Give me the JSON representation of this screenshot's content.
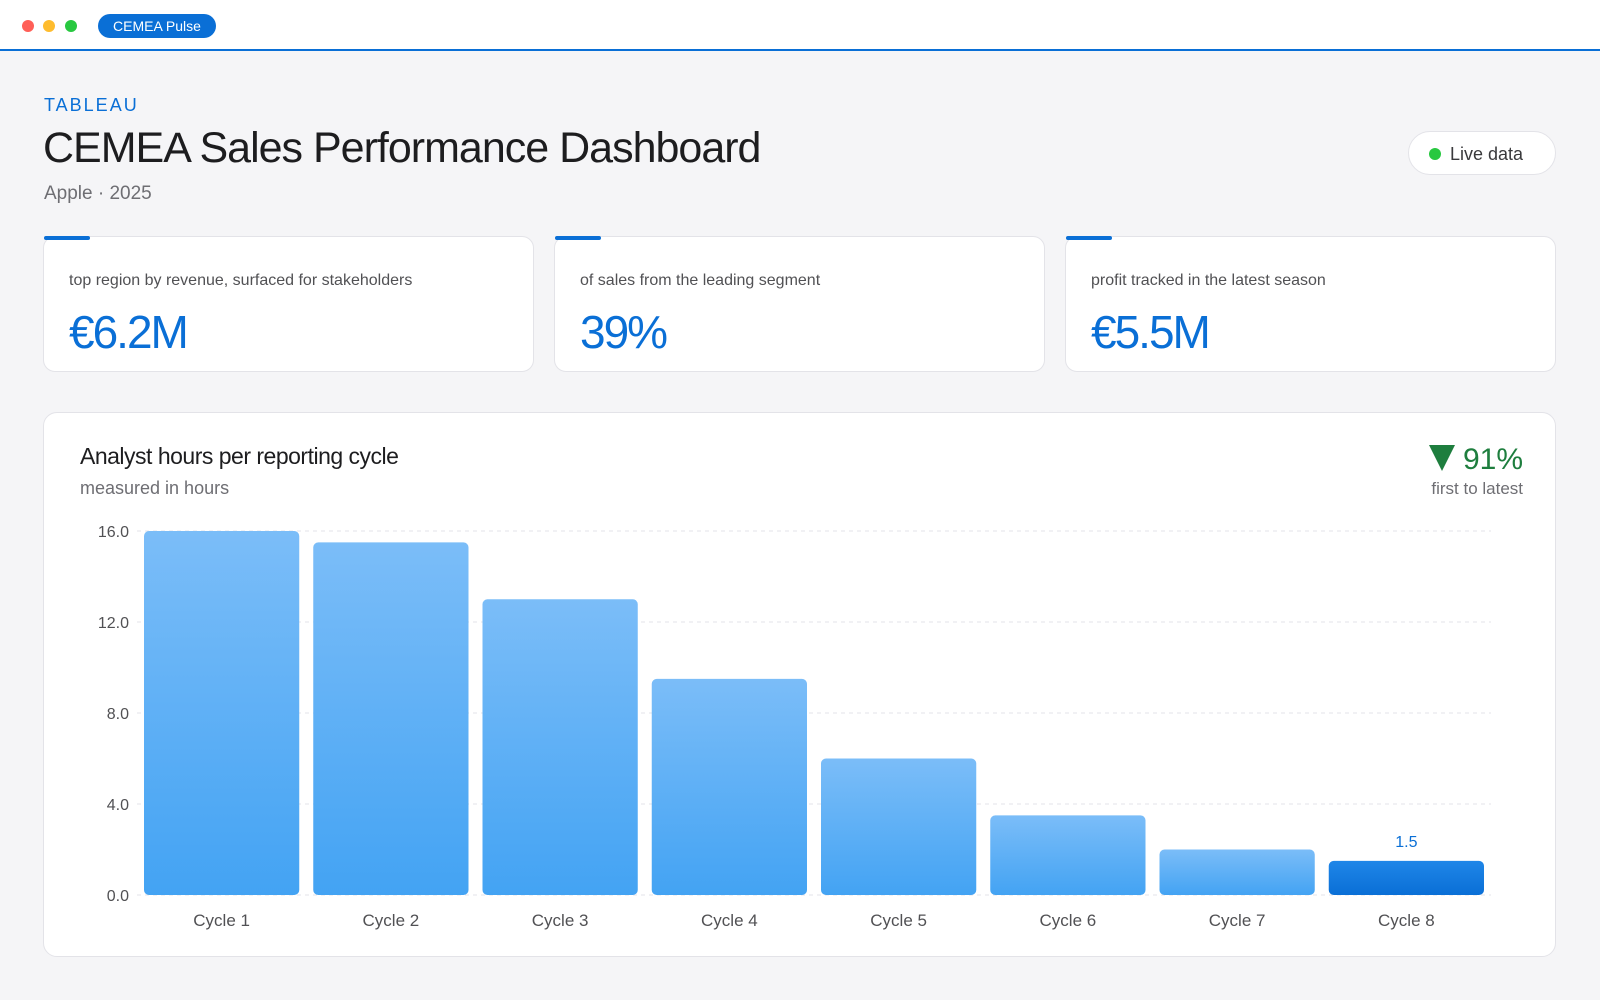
{
  "window": {
    "app_name": "CEMEA Pulse"
  },
  "header": {
    "eyebrow": "TABLEAU",
    "title": "CEMEA Sales Performance Dashboard",
    "subtitle": "Apple · 2025",
    "live_label": "Live data"
  },
  "kpis": [
    {
      "label": "top region by revenue, surfaced for stakeholders",
      "value": "€6.2M"
    },
    {
      "label": "of sales from the leading segment",
      "value": "39%"
    },
    {
      "label": "profit tracked in the latest season",
      "value": "€5.5M"
    }
  ],
  "chart": {
    "title": "Analyst hours per reporting cycle",
    "subtitle": "measured in hours",
    "delta_value": "91%",
    "delta_caption": "first to latest"
  },
  "colors": {
    "accent": "#0a6fd6",
    "bar_light": "#7bbdf8",
    "bar_dark": "#43a3f3",
    "positive": "#1e7e3e",
    "live": "#28c840"
  },
  "chart_data": {
    "type": "bar",
    "categories": [
      "Cycle 1",
      "Cycle 2",
      "Cycle 3",
      "Cycle 4",
      "Cycle 5",
      "Cycle 6",
      "Cycle 7",
      "Cycle 8"
    ],
    "values": [
      16.0,
      15.5,
      13.0,
      9.5,
      6.0,
      3.5,
      2.0,
      1.5
    ],
    "yticks": [
      "0.0",
      "4.0",
      "8.0",
      "12.0",
      "16.0"
    ],
    "ylim": [
      0,
      16
    ],
    "grid": true,
    "highlight_index": 7,
    "highlight_label": "1.5"
  }
}
